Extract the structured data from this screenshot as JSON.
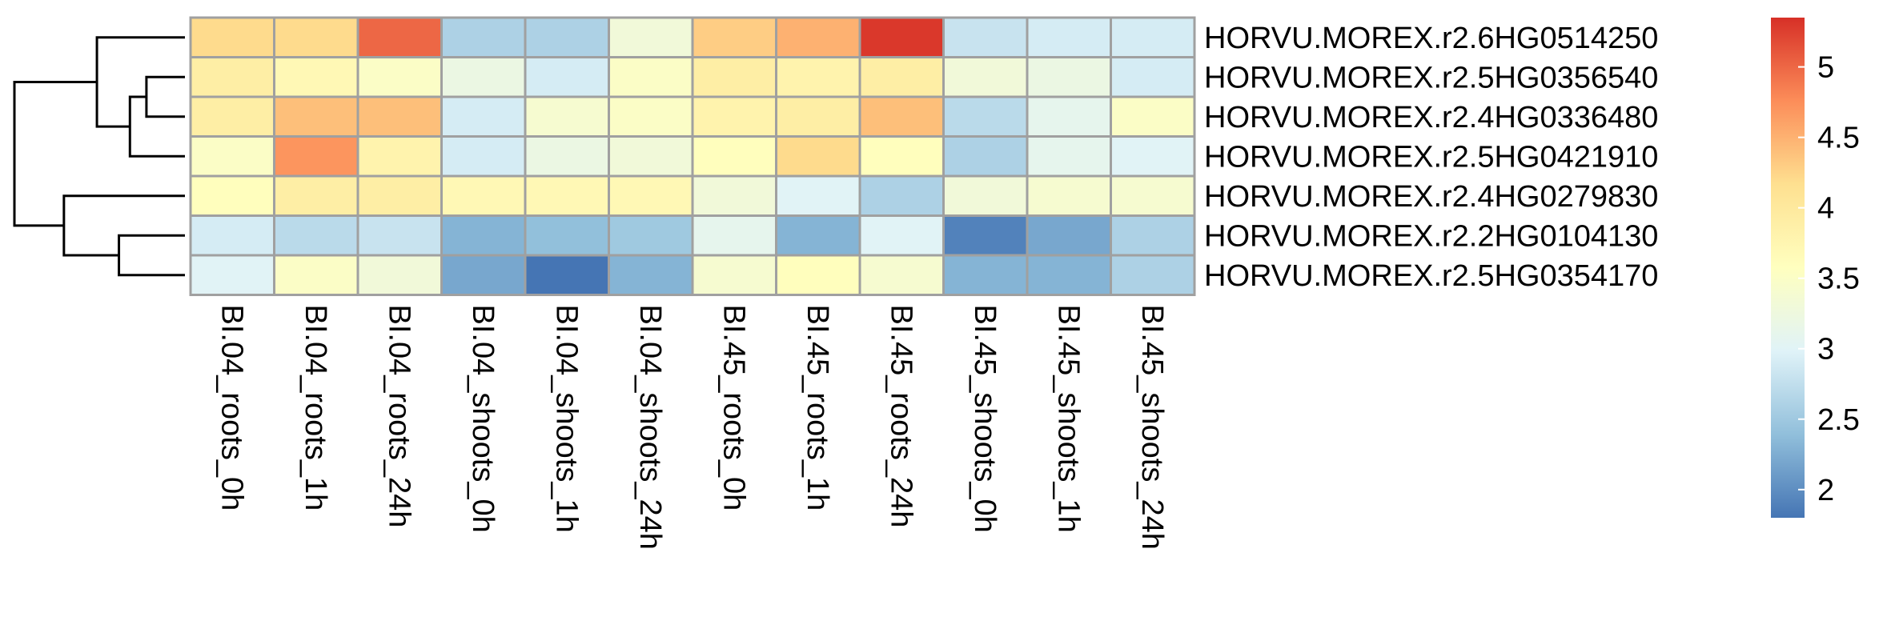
{
  "chart_data": {
    "type": "heatmap",
    "title": "",
    "xlabel": "",
    "ylabel": "",
    "columns": [
      "BI.04_roots_0h",
      "BI.04_roots_1h",
      "BI.04_roots_24h",
      "BI.04_shoots_0h",
      "BI.04_shoots_1h",
      "BI.04_shoots_24h",
      "BI.45_roots_0h",
      "BI.45_roots_1h",
      "BI.45_roots_24h",
      "BI.45_shoots_0h",
      "BI.45_shoots_1h",
      "BI.45_shoots_24h"
    ],
    "rows": [
      "HORVU.MOREX.r2.6HG0514250",
      "HORVU.MOREX.r2.5HG0356540",
      "HORVU.MOREX.r2.4HG0336480",
      "HORVU.MOREX.r2.5HG0421910",
      "HORVU.MOREX.r2.4HG0279830",
      "HORVU.MOREX.r2.2HG0104130",
      "HORVU.MOREX.r2.5HG0354170"
    ],
    "values": [
      [
        4.2,
        4.2,
        5.0,
        2.6,
        2.6,
        3.3,
        4.3,
        4.5,
        5.3,
        2.8,
        2.9,
        2.9
      ],
      [
        3.9,
        3.7,
        3.5,
        3.2,
        2.9,
        3.5,
        3.9,
        3.8,
        3.9,
        3.3,
        3.2,
        2.9
      ],
      [
        3.9,
        4.4,
        4.4,
        2.9,
        3.4,
        3.5,
        3.8,
        3.9,
        4.4,
        2.7,
        3.1,
        3.5
      ],
      [
        3.5,
        4.7,
        3.8,
        2.9,
        3.2,
        3.3,
        3.6,
        4.2,
        3.6,
        2.6,
        3.1,
        3.0
      ],
      [
        3.6,
        3.9,
        3.9,
        3.7,
        3.7,
        3.7,
        3.3,
        3.0,
        2.6,
        3.3,
        3.4,
        3.4
      ],
      [
        2.9,
        2.7,
        2.8,
        2.3,
        2.4,
        2.5,
        3.1,
        2.3,
        3.0,
        1.9,
        2.2,
        2.6
      ],
      [
        3.0,
        3.5,
        3.3,
        2.2,
        1.8,
        2.3,
        3.4,
        3.6,
        3.4,
        2.3,
        2.3,
        2.6
      ]
    ],
    "color_scale": {
      "min": 1.8,
      "max": 5.35,
      "colors": [
        "#4575b4",
        "#91bfdb",
        "#e0f3f8",
        "#ffffbf",
        "#fee090",
        "#fc8d59",
        "#d73027"
      ]
    },
    "legend": {
      "position": "right",
      "ticks": [
        2,
        2.5,
        3,
        3.5,
        4,
        4.5,
        5
      ],
      "tick_labels": [
        "2",
        "2.5",
        "3",
        "3.5",
        "4",
        "4.5",
        "5"
      ]
    },
    "row_dendrogram": {
      "merges": [
        [
          -2,
          -3,
          1
        ],
        [
          -4,
          1,
          2
        ],
        [
          -1,
          2,
          3
        ],
        [
          -6,
          -7,
          2
        ],
        [
          -5,
          4,
          3
        ],
        [
          3,
          5,
          6
        ]
      ],
      "heights": [
        0.7,
        1.0,
        1.6,
        1.2,
        2.2,
        3.1
      ]
    },
    "cell_border_color": "#a0a0a0"
  }
}
